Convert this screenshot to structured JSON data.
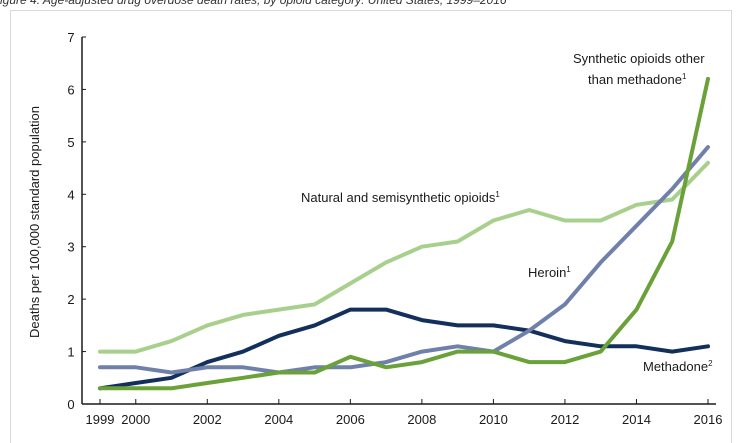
{
  "caption": "igure 4. Age-adjusted drug overdose death rates, by opioid category: United States, 1999–2016",
  "chart_data": {
    "type": "line",
    "title": "",
    "xlabel": "",
    "ylabel": "Deaths per 100,000 standard population",
    "x": [
      1999,
      2000,
      2001,
      2002,
      2003,
      2004,
      2005,
      2006,
      2007,
      2008,
      2009,
      2010,
      2011,
      2012,
      2013,
      2014,
      2015,
      2016
    ],
    "xlim": [
      1999,
      2016
    ],
    "ylim": [
      0,
      7
    ],
    "x_ticks": [
      "1999",
      "2000",
      "2002",
      "2004",
      "2006",
      "2008",
      "2010",
      "2012",
      "2014",
      "2016"
    ],
    "y_ticks": [
      "0",
      "1",
      "2",
      "3",
      "4",
      "5",
      "6",
      "7"
    ],
    "grid": false,
    "series": [
      {
        "name": "Natural and semisynthetic opioids",
        "sup": "1",
        "color": "#a8d08d",
        "values": [
          1.0,
          1.0,
          1.2,
          1.5,
          1.7,
          1.8,
          1.9,
          2.3,
          2.7,
          3.0,
          3.1,
          3.5,
          3.7,
          3.5,
          3.5,
          3.8,
          3.9,
          4.6
        ]
      },
      {
        "name": "Methadone",
        "sup": "2",
        "color": "#12305b",
        "values": [
          0.3,
          0.4,
          0.5,
          0.8,
          1.0,
          1.3,
          1.5,
          1.8,
          1.8,
          1.6,
          1.5,
          1.5,
          1.4,
          1.2,
          1.1,
          1.1,
          1.0,
          1.1
        ]
      },
      {
        "name": "Heroin",
        "sup": "1",
        "color": "#6f80aa",
        "values": [
          0.7,
          0.7,
          0.6,
          0.7,
          0.7,
          0.6,
          0.7,
          0.7,
          0.8,
          1.0,
          1.1,
          1.0,
          1.4,
          1.9,
          2.7,
          3.4,
          4.1,
          4.9
        ]
      },
      {
        "name": "Synthetic opioids other than methadone",
        "sup": "1",
        "color": "#6aa138",
        "values": [
          0.3,
          0.3,
          0.3,
          0.4,
          0.5,
          0.6,
          0.6,
          0.9,
          0.7,
          0.8,
          1.0,
          1.0,
          0.8,
          0.8,
          1.0,
          1.8,
          3.1,
          6.2
        ]
      }
    ],
    "annotations": {
      "synthetic_line1": "Synthetic opioids other",
      "synthetic_line2": "than methadone",
      "synthetic_sup": "1",
      "natural": "Natural and semisynthetic opioids",
      "natural_sup": "1",
      "heroin": "Heroin",
      "heroin_sup": "1",
      "methadone": "Methadone",
      "methadone_sup": "2"
    }
  }
}
